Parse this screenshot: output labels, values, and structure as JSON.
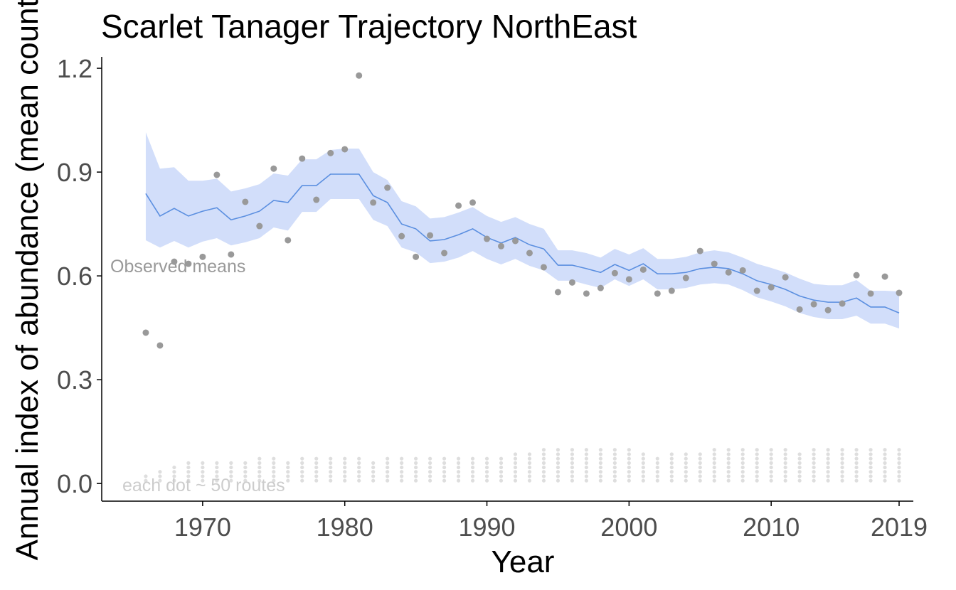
{
  "chart_data": {
    "type": "trajectory",
    "title": "Scarlet Tanager Trajectory NorthEast",
    "x_label": "Year",
    "y_label": "Annual index of abundance (mean count)",
    "annotations": [
      "Observed means",
      "each dot ~ 50 routes"
    ],
    "x": [
      1966,
      1967,
      1968,
      1969,
      1970,
      1971,
      1972,
      1973,
      1974,
      1975,
      1976,
      1977,
      1978,
      1979,
      1980,
      1981,
      1982,
      1983,
      1984,
      1985,
      1986,
      1987,
      1988,
      1989,
      1990,
      1991,
      1992,
      1993,
      1994,
      1995,
      1996,
      1997,
      1998,
      1999,
      2000,
      2001,
      2002,
      2003,
      2004,
      2005,
      2006,
      2007,
      2008,
      2009,
      2010,
      2011,
      2012,
      2013,
      2014,
      2015,
      2016,
      2017,
      2018,
      2019
    ],
    "index": [
      0.838,
      0.773,
      0.795,
      0.773,
      0.787,
      0.797,
      0.762,
      0.773,
      0.787,
      0.818,
      0.812,
      0.861,
      0.861,
      0.894,
      0.894,
      0.894,
      0.832,
      0.812,
      0.75,
      0.736,
      0.701,
      0.705,
      0.719,
      0.736,
      0.711,
      0.695,
      0.711,
      0.69,
      0.678,
      0.631,
      0.631,
      0.621,
      0.61,
      0.633,
      0.616,
      0.635,
      0.606,
      0.606,
      0.61,
      0.621,
      0.625,
      0.621,
      0.606,
      0.586,
      0.575,
      0.561,
      0.542,
      0.53,
      0.524,
      0.524,
      0.536,
      0.51,
      0.51,
      0.493
    ],
    "upper": [
      1.015,
      0.91,
      0.914,
      0.875,
      0.875,
      0.881,
      0.844,
      0.853,
      0.865,
      0.896,
      0.89,
      0.937,
      0.937,
      0.964,
      0.968,
      0.968,
      0.9,
      0.877,
      0.816,
      0.801,
      0.766,
      0.77,
      0.783,
      0.799,
      0.773,
      0.756,
      0.77,
      0.75,
      0.736,
      0.674,
      0.674,
      0.666,
      0.653,
      0.678,
      0.662,
      0.68,
      0.649,
      0.649,
      0.655,
      0.668,
      0.674,
      0.668,
      0.653,
      0.635,
      0.623,
      0.61,
      0.592,
      0.577,
      0.573,
      0.573,
      0.588,
      0.557,
      0.557,
      0.555
    ],
    "lower": [
      0.703,
      0.682,
      0.701,
      0.682,
      0.699,
      0.709,
      0.688,
      0.697,
      0.709,
      0.74,
      0.731,
      0.785,
      0.785,
      0.822,
      0.822,
      0.822,
      0.762,
      0.744,
      0.682,
      0.668,
      0.637,
      0.641,
      0.653,
      0.672,
      0.649,
      0.633,
      0.649,
      0.629,
      0.616,
      0.586,
      0.586,
      0.575,
      0.565,
      0.59,
      0.571,
      0.59,
      0.561,
      0.561,
      0.565,
      0.575,
      0.579,
      0.575,
      0.559,
      0.538,
      0.526,
      0.512,
      0.493,
      0.481,
      0.475,
      0.475,
      0.485,
      0.462,
      0.462,
      0.448
    ],
    "observed": [
      0.436,
      0.399,
      0.641,
      0.635,
      0.655,
      0.892,
      0.662,
      0.814,
      0.744,
      0.91,
      0.703,
      0.939,
      0.82,
      0.955,
      0.966,
      1.179,
      0.812,
      0.855,
      0.715,
      0.655,
      0.717,
      0.666,
      0.803,
      0.812,
      0.707,
      0.686,
      0.701,
      0.666,
      0.625,
      0.553,
      0.581,
      0.549,
      0.565,
      0.608,
      0.59,
      0.618,
      0.549,
      0.557,
      0.594,
      0.672,
      0.635,
      0.61,
      0.616,
      0.557,
      0.567,
      0.596,
      0.503,
      0.518,
      0.501,
      0.52,
      0.602,
      0.549,
      0.598,
      0.551
    ],
    "route_dots": [
      2,
      3,
      4,
      5,
      5,
      5,
      5,
      5,
      6,
      6,
      5,
      6,
      6,
      6,
      6,
      6,
      5,
      6,
      6,
      6,
      6,
      6,
      6,
      6,
      6,
      6,
      7,
      7,
      8,
      8,
      8,
      8,
      8,
      8,
      8,
      7,
      6,
      7,
      7,
      7,
      8,
      8,
      8,
      8,
      8,
      8,
      7,
      8,
      8,
      8,
      8,
      8,
      8,
      8
    ],
    "line_color": "#5b8fe0",
    "band_color": "#d2defa",
    "point_color": "#999999",
    "route_dot_color": "#dedede",
    "xlim": [
      1962.9,
      2020
    ],
    "ylim": [
      -0.051,
      1.233
    ],
    "xticks": [
      1970,
      1980,
      1990,
      2000,
      2010,
      2019
    ],
    "yticks": [
      {
        "value": 0,
        "label": "0.0"
      },
      0.3,
      0.6,
      0.9,
      1.2
    ]
  }
}
